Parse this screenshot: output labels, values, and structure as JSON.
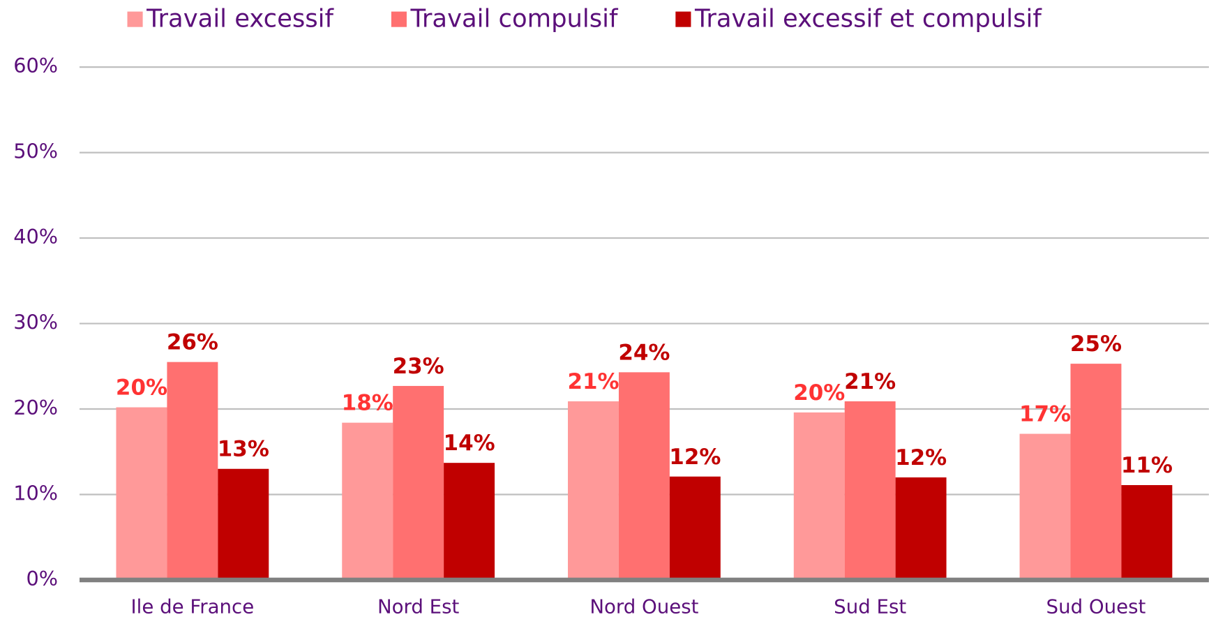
{
  "chart_data": {
    "type": "bar",
    "categories": [
      "Ile de France",
      "Nord Est",
      "Nord Ouest",
      "Sud Est",
      "Sud Ouest"
    ],
    "series": [
      {
        "name": "Travail excessif",
        "color": "#ff9999",
        "label_color": "#ff3333",
        "values": [
          20.2,
          18.4,
          20.9,
          19.6,
          17.1
        ],
        "value_labels": [
          "20%",
          "18%",
          "21%",
          "20%",
          "17%"
        ]
      },
      {
        "name": "Travail compulsif",
        "color": "#ff7070",
        "label_color": "#c00000",
        "values": [
          25.5,
          22.7,
          24.3,
          20.9,
          25.3
        ],
        "value_labels": [
          "26%",
          "23%",
          "24%",
          "21%",
          "25%"
        ]
      },
      {
        "name": "Travail excessif et compulsif",
        "color": "#c00000",
        "label_color": "#c00000",
        "values": [
          13.0,
          13.7,
          12.1,
          12.0,
          11.1
        ],
        "value_labels": [
          "13%",
          "14%",
          "12%",
          "12%",
          "11%"
        ]
      }
    ],
    "ylim": [
      0,
      60
    ],
    "yticks": [
      {
        "value": 0,
        "label": "0%"
      },
      {
        "value": 10,
        "label": "10%"
      },
      {
        "value": 20,
        "label": "20%"
      },
      {
        "value": 30,
        "label": "30%"
      },
      {
        "value": 40,
        "label": "40%"
      },
      {
        "value": 50,
        "label": "50%"
      },
      {
        "value": 60,
        "label": "60%"
      }
    ],
    "grid": true,
    "legend": "top"
  }
}
